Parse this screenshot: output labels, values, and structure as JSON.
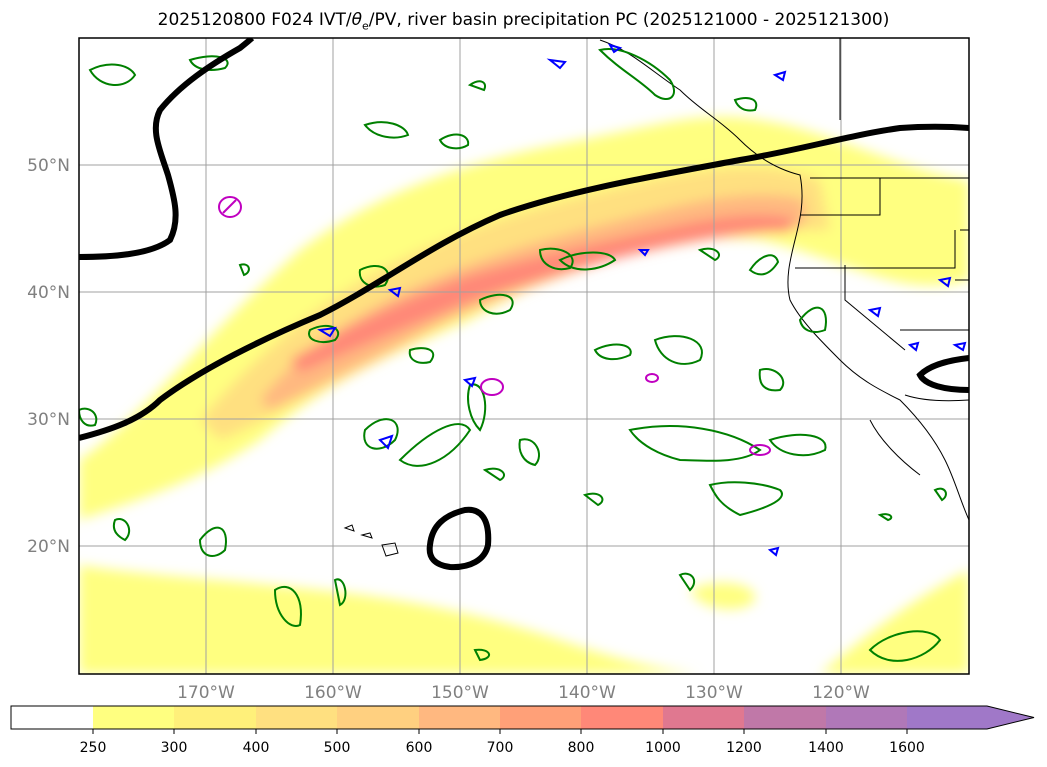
{
  "title": "2025120800 F024 IVT/θe/PV, river basin precipitation PC (2025121000 - 2025121300)",
  "title_parts": {
    "prefix": "2025120800 F024 IVT/",
    "theta": "θ",
    "theta_sub": "e",
    "suffix": "/PV, river basin precipitation PC (2025121000 - 2025121300)"
  },
  "map": {
    "lon_range": [
      -180,
      -110
    ],
    "lat_range": [
      10,
      60
    ],
    "lon_ticks": [
      {
        "value": -170,
        "label": "170°W"
      },
      {
        "value": -160,
        "label": "160°W"
      },
      {
        "value": -150,
        "label": "150°W"
      },
      {
        "value": -140,
        "label": "140°W"
      },
      {
        "value": -130,
        "label": "130°W"
      },
      {
        "value": -120,
        "label": "120°W"
      }
    ],
    "lat_ticks": [
      {
        "value": 20,
        "label": "20°N"
      },
      {
        "value": 30,
        "label": "30°N"
      },
      {
        "value": 40,
        "label": "40°N"
      },
      {
        "value": 50,
        "label": "50°N"
      }
    ],
    "gridlines": true,
    "colors": {
      "pv_contour": "#000000",
      "theta_e_contour": "#008000",
      "precip_blue": "#0000ff",
      "magenta": "#c000c0",
      "coast": "#000000"
    }
  },
  "colorbar": {
    "levels": [
      "250",
      "300",
      "400",
      "500",
      "600",
      "700",
      "800",
      "1000",
      "1200",
      "1400",
      "1600"
    ],
    "colors": [
      "#ffffff",
      "#ffff80",
      "#fff07a",
      "#ffe080",
      "#ffd080",
      "#ffb880",
      "#ffa078",
      "#ff8878",
      "#e07890",
      "#c078a8",
      "#b078b8",
      "#a078c8"
    ],
    "extend": "max"
  }
}
